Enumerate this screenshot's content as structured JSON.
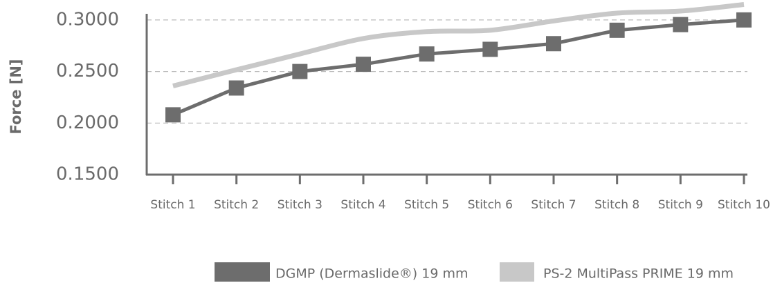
{
  "chart_data": {
    "type": "line",
    "y_label": "Force [N]",
    "categories": [
      "Stitch 1",
      "Stitch 2",
      "Stitch 3",
      "Stitch 4",
      "Stitch 5",
      "Stitch 6",
      "Stitch 7",
      "Stitch 8",
      "Stitch 9",
      "Stitch 10"
    ],
    "series": [
      {
        "name": "DGMP (Dermaslide®) 19 mm",
        "color": "#6d6d6d",
        "markers": true,
        "smooth": false,
        "values": [
          0.208,
          0.234,
          0.25,
          0.257,
          0.267,
          0.2715,
          0.277,
          0.29,
          0.2955,
          0.3
        ]
      },
      {
        "name": "PS-2 MultiPass PRIME 19 mm",
        "color": "#c8c8c8",
        "markers": false,
        "smooth": true,
        "values": [
          0.236,
          0.2517,
          0.267,
          0.282,
          0.2887,
          0.29,
          0.299,
          0.3066,
          0.3086,
          0.315
        ]
      }
    ],
    "ylim": [
      0.15,
      0.318
    ],
    "yticks": [
      {
        "value": 0.15,
        "label": "0.1500"
      },
      {
        "value": 0.2,
        "label": "0.2000"
      },
      {
        "value": 0.25,
        "label": "0.2500"
      },
      {
        "value": 0.3,
        "label": "0.3000"
      }
    ],
    "grid": true,
    "legend": "bottom"
  }
}
